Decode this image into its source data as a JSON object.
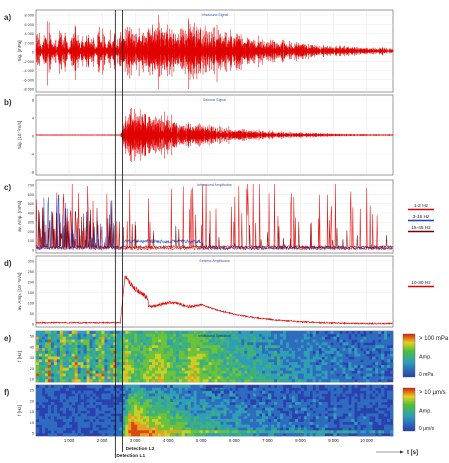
{
  "figure": {
    "x_axis": {
      "label": "t [s]",
      "ticks": [
        1000,
        2000,
        3000,
        4000,
        5000,
        6000,
        7000,
        8000,
        9000,
        10000
      ],
      "tick_labels": [
        "1 000",
        "2 000",
        "3 000",
        "4 000",
        "5 000",
        "6 000",
        "7 000",
        "8 000",
        "9 000",
        "10 000"
      ],
      "range": [
        0,
        10800
      ]
    },
    "detections": [
      {
        "label": "Detection L1",
        "t": 2400
      },
      {
        "label": "Detection L2",
        "t": 2620
      }
    ]
  },
  "chart_data": [
    {
      "panel": "a)",
      "type": "line",
      "title": "Infrasound Signal",
      "ylabel": "Sig. [mPa]",
      "yticks": [
        "8 000",
        "6 000",
        "4 000",
        "2 000",
        "0",
        "-2 000",
        "-4 000",
        "-6 000",
        "-8 000"
      ],
      "ylim": [
        -9000,
        9000
      ],
      "series": [
        {
          "color": "#e00000"
        }
      ],
      "grid": true
    },
    {
      "panel": "b)",
      "type": "line",
      "title": "Seismic Signal",
      "ylabel": "Sig. [10⁻³m/s]",
      "yticks": [
        "8",
        "4",
        "0",
        "-4",
        "-8"
      ],
      "ylim": [
        -10,
        10
      ],
      "series": [
        {
          "color": "#e00000"
        }
      ],
      "grid": true
    },
    {
      "panel": "c)",
      "type": "line",
      "title": "Infrasound Amplitudes",
      "ylabel": "av. Amp. [mPa]",
      "yticks": [
        "700",
        "600",
        "500",
        "400",
        "300",
        "200",
        "100",
        "0"
      ],
      "ylim": [
        0,
        760
      ],
      "series": [
        {
          "name": "1-2 Hz",
          "color": "#e00000"
        },
        {
          "name": "3-15 Hz",
          "color": "#1f3fbf"
        },
        {
          "name": "15-45 Hz",
          "color": "#7a0000"
        }
      ],
      "legend": "right",
      "grid": true
    },
    {
      "panel": "d)",
      "type": "line",
      "title": "Seismic Amplitudes",
      "ylabel": "av. Amp. [10⁻³m/s]",
      "yticks": [
        "300",
        "250",
        "200",
        "150",
        "100",
        "50",
        "0"
      ],
      "ylim": [
        0,
        310
      ],
      "series": [
        {
          "name": "10-30 Hz",
          "color": "#e00000"
        }
      ],
      "legend": "right",
      "grid": true
    },
    {
      "panel": "e)",
      "type": "heatmap",
      "title": "Infrasound Spectrum",
      "ylabel": "f [Hz]",
      "yticks": [
        "50",
        "40",
        "30",
        "20",
        "10"
      ],
      "ylim": [
        0,
        50
      ],
      "colorbar": {
        "max_label": "> 100 mPa",
        "mid_label": "Amp.",
        "min_label": "0 mPa"
      }
    },
    {
      "panel": "f)",
      "type": "heatmap",
      "title": "Seismic Spectrum",
      "ylabel": "f [Hz]",
      "yticks": [
        "25",
        "20",
        "15",
        "10",
        "5"
      ],
      "ylim": [
        0,
        25
      ],
      "colorbar": {
        "max_label": "> 10 µm/s",
        "mid_label": "Amp.",
        "min_label": "0 µm/s"
      }
    }
  ]
}
